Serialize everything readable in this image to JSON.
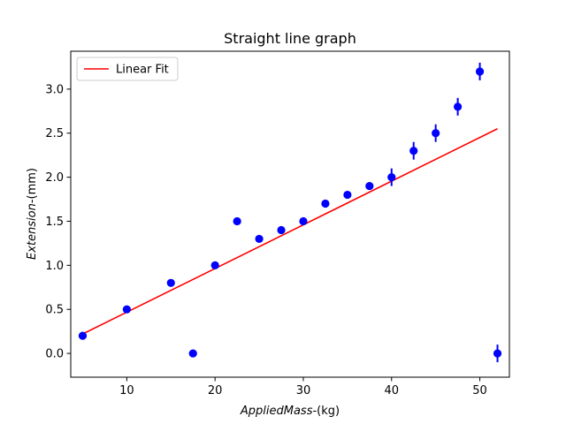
{
  "chart_data": {
    "type": "scatter",
    "title": "Straight line graph",
    "xlabel": {
      "italic": "AppliedMass",
      "unit": "-(kg)"
    },
    "ylabel": {
      "italic": "Extension",
      "unit": "-(mm)"
    },
    "xlim": [
      3.65,
      53.35
    ],
    "ylim": [
      -0.27,
      3.43
    ],
    "xticks": [
      10,
      20,
      30,
      40,
      50
    ],
    "yticks": [
      0.0,
      0.5,
      1.0,
      1.5,
      2.0,
      2.5,
      3.0
    ],
    "ytick_labels": [
      "0.0",
      "0.5",
      "1.0",
      "1.5",
      "2.0",
      "2.5",
      "3.0"
    ],
    "grid": false,
    "legend": {
      "placement": "top-left",
      "entries": [
        {
          "label": "Linear Fit",
          "color": "#ff0000",
          "kind": "line"
        }
      ]
    },
    "series": [
      {
        "kind": "errorbar",
        "color": "#0000ff",
        "points": [
          {
            "x": 5,
            "y": 0.2,
            "err": 0.02
          },
          {
            "x": 10,
            "y": 0.5,
            "err": 0.03
          },
          {
            "x": 15,
            "y": 0.8,
            "err": 0.03
          },
          {
            "x": 17.5,
            "y": 0.0,
            "err": 0.03
          },
          {
            "x": 20,
            "y": 1.0,
            "err": 0.03
          },
          {
            "x": 22.5,
            "y": 1.5,
            "err": 0.04
          },
          {
            "x": 25,
            "y": 1.3,
            "err": 0.03
          },
          {
            "x": 27.5,
            "y": 1.4,
            "err": 0.04
          },
          {
            "x": 30,
            "y": 1.5,
            "err": 0.04
          },
          {
            "x": 32.5,
            "y": 1.7,
            "err": 0.04
          },
          {
            "x": 35,
            "y": 1.8,
            "err": 0.04
          },
          {
            "x": 37.5,
            "y": 1.9,
            "err": 0.04
          },
          {
            "x": 40,
            "y": 2.0,
            "err": 0.1
          },
          {
            "x": 42.5,
            "y": 2.3,
            "err": 0.1
          },
          {
            "x": 45,
            "y": 2.5,
            "err": 0.1
          },
          {
            "x": 47.5,
            "y": 2.8,
            "err": 0.1
          },
          {
            "x": 50,
            "y": 3.2,
            "err": 0.1
          },
          {
            "x": 52,
            "y": 0.0,
            "err": 0.1
          }
        ]
      },
      {
        "kind": "line",
        "name": "Linear Fit",
        "color": "#ff0000",
        "points": [
          {
            "x": 5,
            "y": 0.22
          },
          {
            "x": 52,
            "y": 2.55
          }
        ]
      }
    ]
  }
}
